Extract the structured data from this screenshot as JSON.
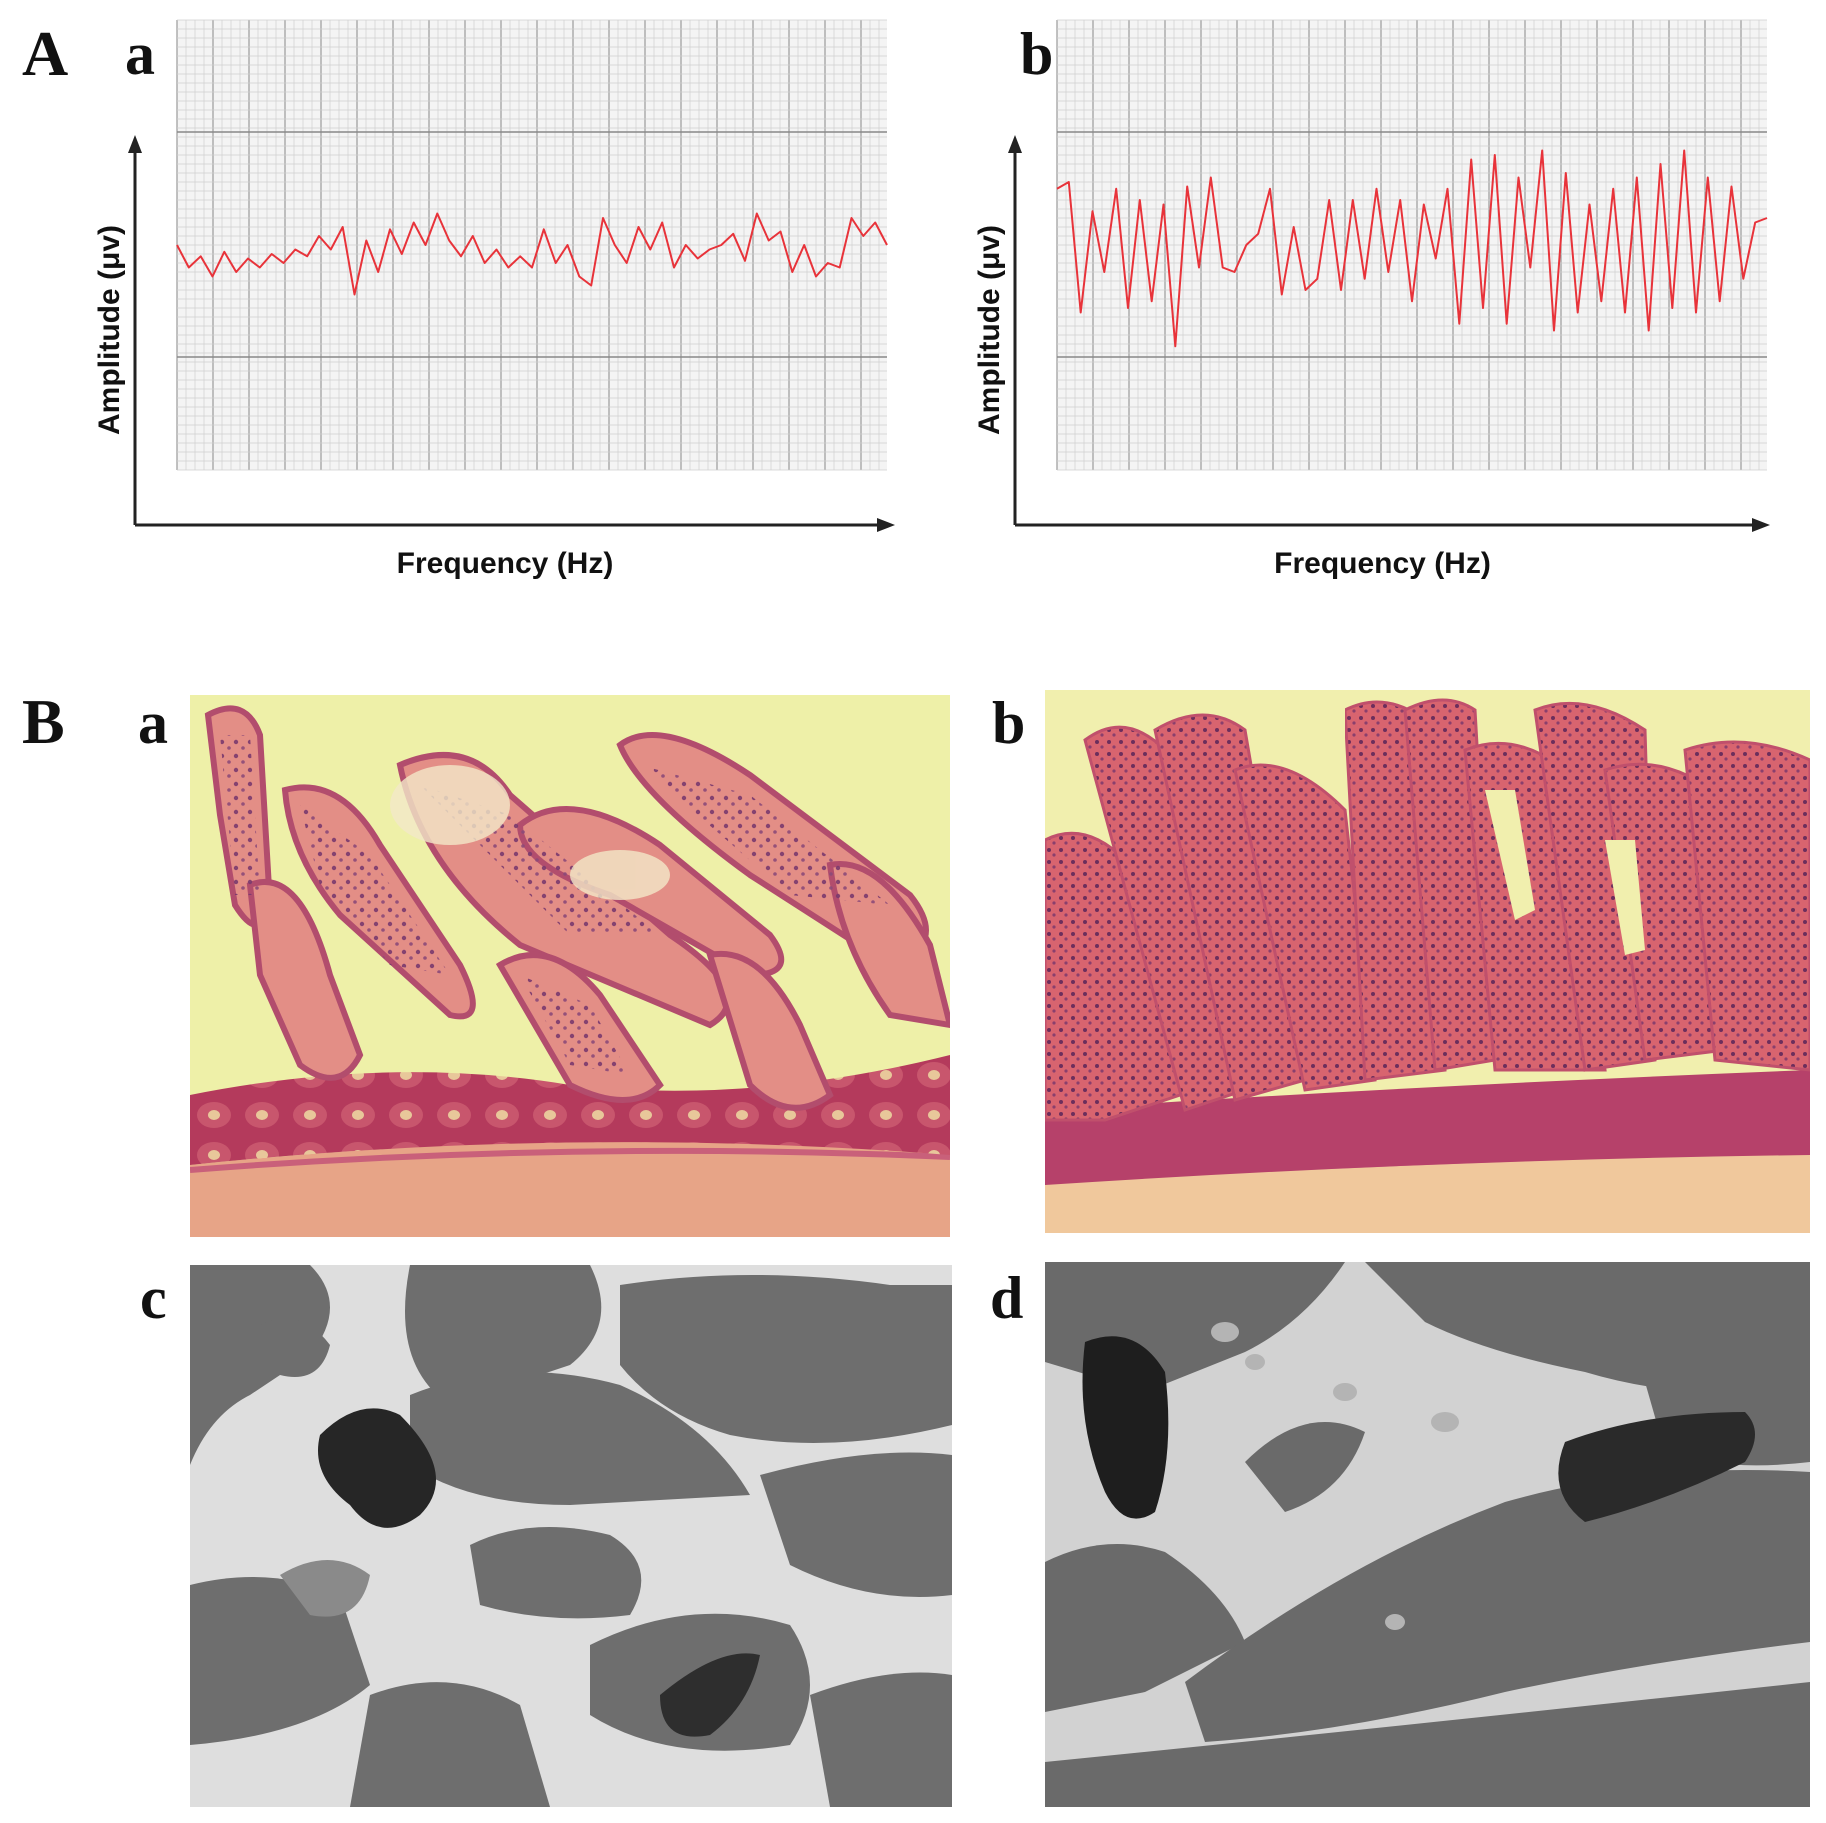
{
  "figure": {
    "panel_A_label": "A",
    "panel_B_label": "B",
    "sub_a": "a",
    "sub_b": "b",
    "sub_c": "c",
    "sub_d": "d"
  },
  "chart_data": [
    {
      "type": "line",
      "panel": "a",
      "xlabel": "Frequency (Hz)",
      "ylabel": "Amplitude (μv)",
      "grid": true,
      "line_color": "#e8333a",
      "ylim": [
        -1,
        1
      ],
      "x": [
        0,
        1,
        2,
        3,
        4,
        5,
        6,
        7,
        8,
        9,
        10,
        11,
        12,
        13,
        14,
        15,
        16,
        17,
        18,
        19,
        20,
        21,
        22,
        23,
        24,
        25,
        26,
        27,
        28,
        29,
        30,
        31,
        32,
        33,
        34,
        35,
        36,
        37,
        38,
        39,
        40,
        41,
        42,
        43,
        44,
        45,
        46,
        47,
        48,
        49,
        50,
        51,
        52,
        53,
        54,
        55,
        56,
        57,
        58,
        59,
        60
      ],
      "y": [
        0.0,
        -0.1,
        -0.05,
        -0.14,
        -0.03,
        -0.12,
        -0.06,
        -0.1,
        -0.04,
        -0.08,
        -0.02,
        -0.05,
        0.04,
        -0.02,
        0.08,
        -0.22,
        0.02,
        -0.12,
        0.07,
        -0.04,
        0.1,
        0.0,
        0.14,
        0.02,
        -0.05,
        0.04,
        -0.08,
        -0.02,
        -0.1,
        -0.05,
        -0.1,
        0.07,
        -0.08,
        0.0,
        -0.14,
        -0.18,
        0.12,
        0.0,
        -0.08,
        0.08,
        -0.02,
        0.1,
        -0.1,
        0.0,
        -0.06,
        -0.02,
        0.0,
        0.05,
        -0.07,
        0.14,
        0.02,
        0.06,
        -0.12,
        0.0,
        -0.14,
        -0.08,
        -0.1,
        0.12,
        0.04,
        0.1,
        0.0
      ]
    },
    {
      "type": "line",
      "panel": "b",
      "xlabel": "Frequency (Hz)",
      "ylabel": "Amplitude (μv)",
      "grid": true,
      "line_color": "#e8333a",
      "ylim": [
        -1,
        1
      ],
      "x": [
        0,
        1,
        2,
        3,
        4,
        5,
        6,
        7,
        8,
        9,
        10,
        11,
        12,
        13,
        14,
        15,
        16,
        17,
        18,
        19,
        20,
        21,
        22,
        23,
        24,
        25,
        26,
        27,
        28,
        29,
        30,
        31,
        32,
        33,
        34,
        35,
        36,
        37,
        38,
        39,
        40,
        41,
        42,
        43,
        44,
        45,
        46,
        47,
        48,
        49,
        50,
        51,
        52,
        53,
        54,
        55,
        56,
        57,
        58,
        59,
        60
      ],
      "y": [
        0.25,
        0.28,
        -0.3,
        0.15,
        -0.12,
        0.25,
        -0.28,
        0.2,
        -0.25,
        0.18,
        -0.45,
        0.26,
        -0.1,
        0.3,
        -0.1,
        -0.12,
        0.0,
        0.05,
        0.25,
        -0.22,
        0.08,
        -0.2,
        -0.15,
        0.2,
        -0.2,
        0.2,
        -0.15,
        0.25,
        -0.12,
        0.2,
        -0.25,
        0.18,
        -0.06,
        0.25,
        -0.35,
        0.38,
        -0.28,
        0.4,
        -0.35,
        0.3,
        -0.1,
        0.42,
        -0.38,
        0.32,
        -0.3,
        0.18,
        -0.25,
        0.25,
        -0.3,
        0.3,
        -0.38,
        0.36,
        -0.28,
        0.42,
        -0.3,
        0.3,
        -0.25,
        0.26,
        -0.15,
        0.1,
        0.12
      ]
    }
  ]
}
